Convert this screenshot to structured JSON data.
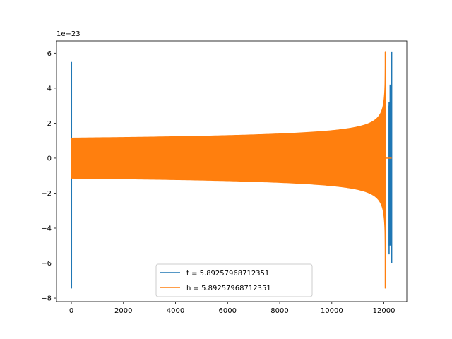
{
  "chart_data": {
    "type": "line",
    "title": "",
    "xlabel": "",
    "ylabel": "",
    "y_offset_label": "1e−23",
    "xlim": [
      -570,
      12880
    ],
    "ylim": [
      -8.2,
      6.7
    ],
    "x_ticks": [
      0,
      2000,
      4000,
      6000,
      8000,
      10000,
      12000
    ],
    "x_tick_labels": [
      "0",
      "2000",
      "4000",
      "6000",
      "8000",
      "10000",
      "12000"
    ],
    "y_ticks": [
      6,
      4,
      2,
      0,
      -2,
      -4,
      -6,
      -8
    ],
    "y_tick_labels": [
      "6",
      "4",
      "2",
      "0",
      "−2",
      "−4",
      "−6",
      "−8"
    ],
    "grid": false,
    "legend_position": "lower center",
    "series": [
      {
        "name": "t = 5.89257968712351",
        "color": "#1f77b4",
        "spikes": [
          {
            "x": 0,
            "min": -7.45,
            "max": 5.5
          },
          {
            "x": 12200,
            "min": -5.5,
            "max": 3.0
          },
          {
            "x": 12240,
            "min": -4.2,
            "max": 4.2
          },
          {
            "x": 12270,
            "min": -3.0,
            "max": 3.0
          },
          {
            "x": 12300,
            "min": -6.0,
            "max": 6.1
          }
        ]
      },
      {
        "name": "h = 5.89257968712351",
        "color": "#ff7f0e",
        "envelope": {
          "x_start": 0,
          "x_merger": 12060,
          "amp_start": 1.15,
          "amp_merger": 6.1,
          "min_at_merger": -7.45,
          "tail_x_end": 12300
        }
      }
    ]
  }
}
